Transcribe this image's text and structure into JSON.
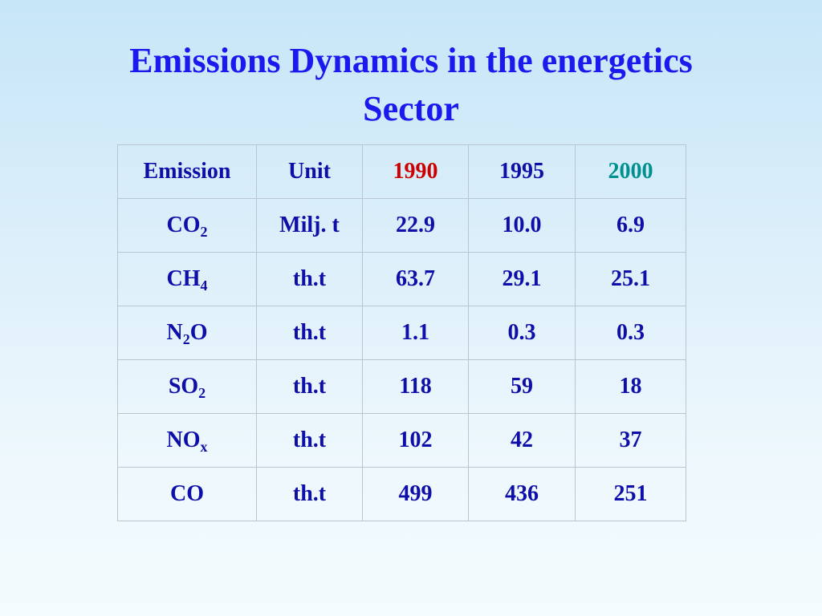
{
  "title": {
    "line1": "Emissions Dynamics in the energetics",
    "line2": "Sector"
  },
  "colors": {
    "title": "#1a1aee",
    "text": "#0e0ea8",
    "year_1990": "#cc0000",
    "year_2000": "#009090",
    "border": "#b8c6cf"
  },
  "table": {
    "headers": [
      "Emission",
      "Unit",
      "1990",
      "1995",
      "2000"
    ],
    "rows": [
      {
        "base": "CO",
        "sub": "2",
        "tail": "",
        "unit": "Milj. t",
        "y1990": "22.9",
        "y1995": "10.0",
        "y2000": "6.9"
      },
      {
        "base": "CH",
        "sub": "4",
        "tail": "",
        "unit": "th.t",
        "y1990": "63.7",
        "y1995": "29.1",
        "y2000": "25.1"
      },
      {
        "base": "N",
        "sub": "2",
        "tail": "O",
        "unit": "th.t",
        "y1990": "1.1",
        "y1995": "0.3",
        "y2000": "0.3"
      },
      {
        "base": "SO",
        "sub": "2",
        "tail": "",
        "unit": "th.t",
        "y1990": "118",
        "y1995": "59",
        "y2000": "18"
      },
      {
        "base": "NO",
        "sub": "x",
        "tail": "",
        "unit": "th.t",
        "y1990": "102",
        "y1995": "42",
        "y2000": "37"
      },
      {
        "base": "CO",
        "sub": "",
        "tail": "",
        "unit": "th.t",
        "y1990": "499",
        "y1995": "436",
        "y2000": "251"
      }
    ]
  }
}
